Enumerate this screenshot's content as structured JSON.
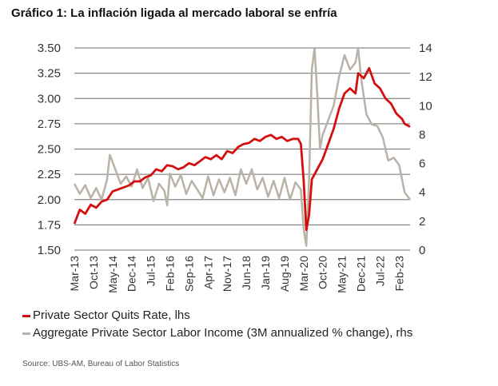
{
  "title": "Gráfico 1: La inflación ligada al mercado laboral se enfría",
  "source": "Source: UBS-AM, Bureau of Labor Statistics",
  "colors": {
    "quits": "#d40f0f",
    "income": "#b9b2a6",
    "grid": "#6d6d6d"
  },
  "chart_data": {
    "type": "line",
    "title": "Gráfico 1: La inflación ligada al mercado laboral se enfría",
    "x_tick_labels": [
      "Mar-13",
      "Oct-13",
      "May-14",
      "Dec-14",
      "Jul-15",
      "Feb-16",
      "Sep-16",
      "Apr-17",
      "Nov-17",
      "Jun-18",
      "Jan-19",
      "Aug-19",
      "Mar-20",
      "Oct-20",
      "May-21",
      "Dec-21",
      "Jul-22",
      "Feb-23"
    ],
    "x_range": [
      "Mar-13",
      "Jun-23"
    ],
    "y_left": {
      "range": [
        1.5,
        3.5
      ],
      "ticks": [
        "1.50",
        "1.75",
        "2.00",
        "2.25",
        "2.50",
        "2.75",
        "3.00",
        "3.25",
        "3.50"
      ]
    },
    "y_right": {
      "range": [
        0,
        14
      ],
      "ticks": [
        "0",
        "2",
        "4",
        "6",
        "8",
        "10",
        "12",
        "14"
      ]
    },
    "grid": true,
    "legend_position": "bottom-left",
    "series": [
      {
        "name": "Private Sector Quits Rate, lhs",
        "axis": "left",
        "points": [
          [
            "Mar-13",
            1.76
          ],
          [
            "May-13",
            1.9
          ],
          [
            "Jul-13",
            1.86
          ],
          [
            "Sep-13",
            1.95
          ],
          [
            "Nov-13",
            1.92
          ],
          [
            "Jan-14",
            1.98
          ],
          [
            "Mar-14",
            2.0
          ],
          [
            "May-14",
            2.08
          ],
          [
            "Jul-14",
            2.1
          ],
          [
            "Sep-14",
            2.12
          ],
          [
            "Nov-14",
            2.14
          ],
          [
            "Jan-15",
            2.18
          ],
          [
            "Mar-15",
            2.18
          ],
          [
            "May-15",
            2.22
          ],
          [
            "Jul-15",
            2.24
          ],
          [
            "Sep-15",
            2.3
          ],
          [
            "Nov-15",
            2.28
          ],
          [
            "Jan-16",
            2.34
          ],
          [
            "Mar-16",
            2.33
          ],
          [
            "May-16",
            2.3
          ],
          [
            "Jul-16",
            2.32
          ],
          [
            "Sep-16",
            2.36
          ],
          [
            "Nov-16",
            2.34
          ],
          [
            "Jan-17",
            2.38
          ],
          [
            "Mar-17",
            2.42
          ],
          [
            "May-17",
            2.4
          ],
          [
            "Jul-17",
            2.44
          ],
          [
            "Sep-17",
            2.4
          ],
          [
            "Nov-17",
            2.48
          ],
          [
            "Jan-18",
            2.46
          ],
          [
            "Mar-18",
            2.52
          ],
          [
            "May-18",
            2.55
          ],
          [
            "Jul-18",
            2.56
          ],
          [
            "Sep-18",
            2.6
          ],
          [
            "Nov-18",
            2.58
          ],
          [
            "Jan-19",
            2.62
          ],
          [
            "Mar-19",
            2.64
          ],
          [
            "May-19",
            2.6
          ],
          [
            "Jul-19",
            2.62
          ],
          [
            "Sep-19",
            2.58
          ],
          [
            "Nov-19",
            2.6
          ],
          [
            "Jan-20",
            2.6
          ],
          [
            "Feb-20",
            2.55
          ],
          [
            "Mar-20",
            2.2
          ],
          [
            "Apr-20",
            1.7
          ],
          [
            "May-20",
            1.85
          ],
          [
            "Jun-20",
            2.2
          ],
          [
            "Aug-20",
            2.3
          ],
          [
            "Oct-20",
            2.4
          ],
          [
            "Dec-20",
            2.55
          ],
          [
            "Feb-21",
            2.7
          ],
          [
            "Apr-21",
            2.9
          ],
          [
            "Jun-21",
            3.05
          ],
          [
            "Aug-21",
            3.1
          ],
          [
            "Oct-21",
            3.05
          ],
          [
            "Nov-21",
            3.25
          ],
          [
            "Jan-22",
            3.2
          ],
          [
            "Mar-22",
            3.3
          ],
          [
            "May-22",
            3.15
          ],
          [
            "Jul-22",
            3.1
          ],
          [
            "Sep-22",
            3.0
          ],
          [
            "Nov-22",
            2.95
          ],
          [
            "Jan-23",
            2.85
          ],
          [
            "Mar-23",
            2.8
          ],
          [
            "Apr-23",
            2.75
          ],
          [
            "Jun-23",
            2.72
          ]
        ]
      },
      {
        "name": "Aggregate Private Sector Labor Income (3M annualized % change), rhs",
        "axis": "right",
        "points": [
          [
            "Mar-13",
            4.6
          ],
          [
            "May-13",
            3.9
          ],
          [
            "Jul-13",
            4.5
          ],
          [
            "Sep-13",
            3.6
          ],
          [
            "Nov-13",
            4.3
          ],
          [
            "Jan-14",
            3.5
          ],
          [
            "Mar-14",
            4.9
          ],
          [
            "Apr-14",
            6.6
          ],
          [
            "Jun-14",
            5.6
          ],
          [
            "Aug-14",
            4.6
          ],
          [
            "Oct-14",
            5.1
          ],
          [
            "Dec-14",
            4.4
          ],
          [
            "Feb-15",
            5.6
          ],
          [
            "Apr-15",
            4.3
          ],
          [
            "Jun-15",
            5.0
          ],
          [
            "Aug-15",
            3.4
          ],
          [
            "Oct-15",
            4.6
          ],
          [
            "Dec-15",
            4.1
          ],
          [
            "Jan-16",
            3.1
          ],
          [
            "Feb-16",
            5.3
          ],
          [
            "Apr-16",
            4.4
          ],
          [
            "Jun-16",
            5.2
          ],
          [
            "Aug-16",
            3.9
          ],
          [
            "Oct-16",
            4.8
          ],
          [
            "Dec-16",
            4.2
          ],
          [
            "Feb-17",
            3.6
          ],
          [
            "Apr-17",
            5.1
          ],
          [
            "Jun-17",
            3.8
          ],
          [
            "Aug-17",
            4.9
          ],
          [
            "Oct-17",
            4.0
          ],
          [
            "Dec-17",
            5.0
          ],
          [
            "Feb-18",
            3.8
          ],
          [
            "Apr-18",
            5.6
          ],
          [
            "Jun-18",
            4.6
          ],
          [
            "Aug-18",
            5.6
          ],
          [
            "Oct-18",
            4.2
          ],
          [
            "Dec-18",
            5.0
          ],
          [
            "Feb-19",
            3.7
          ],
          [
            "Apr-19",
            4.8
          ],
          [
            "Jun-19",
            3.6
          ],
          [
            "Aug-19",
            5.0
          ],
          [
            "Oct-19",
            3.5
          ],
          [
            "Dec-19",
            4.7
          ],
          [
            "Feb-20",
            4.2
          ],
          [
            "Mar-20",
            1.5
          ],
          [
            "Apr-20",
            0.3
          ],
          [
            "May-20",
            5.0
          ],
          [
            "Jun-20",
            12.5
          ],
          [
            "Jul-20",
            14.0
          ],
          [
            "Aug-20",
            10.8
          ],
          [
            "Sep-20",
            7.0
          ],
          [
            "Oct-20",
            8.0
          ],
          [
            "Dec-20",
            9.0
          ],
          [
            "Feb-21",
            10.0
          ],
          [
            "Apr-21",
            12.0
          ],
          [
            "Jun-21",
            13.5
          ],
          [
            "Aug-21",
            12.5
          ],
          [
            "Oct-21",
            13.0
          ],
          [
            "Nov-21",
            14.0
          ],
          [
            "Dec-21",
            12.0
          ],
          [
            "Feb-22",
            9.4
          ],
          [
            "Apr-22",
            8.7
          ],
          [
            "Jun-22",
            8.6
          ],
          [
            "Aug-22",
            7.8
          ],
          [
            "Oct-22",
            6.2
          ],
          [
            "Dec-22",
            6.4
          ],
          [
            "Feb-23",
            5.9
          ],
          [
            "Apr-23",
            4.0
          ],
          [
            "Jun-23",
            3.5
          ]
        ]
      }
    ]
  }
}
